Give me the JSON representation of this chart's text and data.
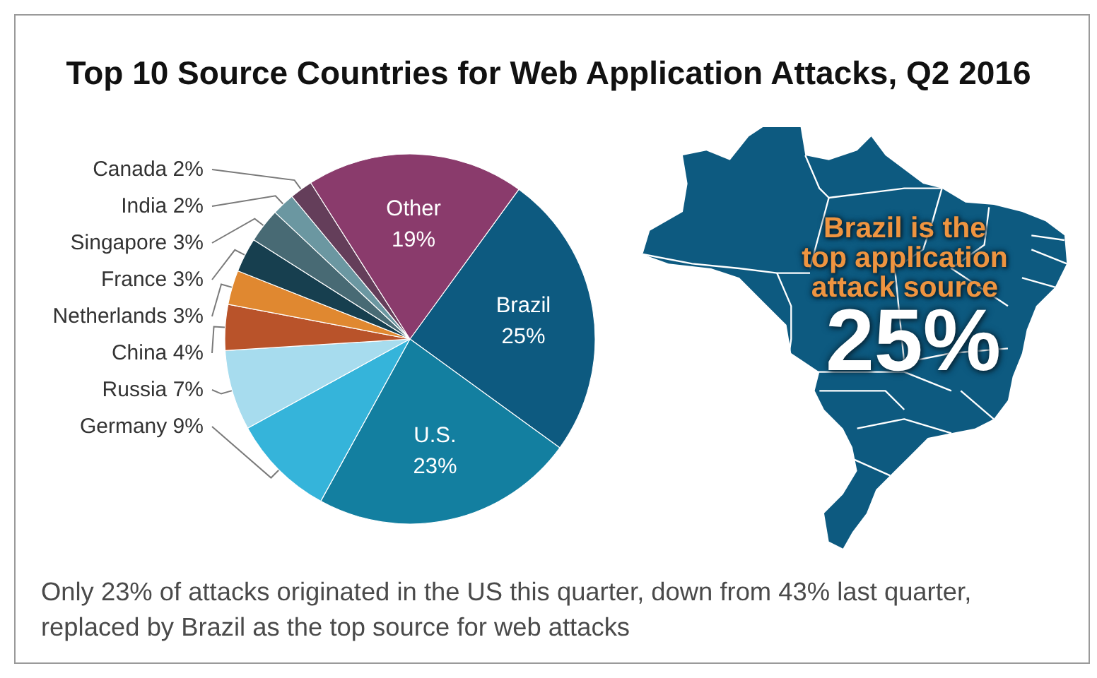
{
  "chart_data": {
    "type": "pie",
    "title": "Top 10 Source Countries for Web Application Attacks, Q2 2016",
    "categories": [
      "Brazil",
      "U.S.",
      "Germany",
      "Russia",
      "China",
      "Netherlands",
      "France",
      "Singapore",
      "India",
      "Canada",
      "Other"
    ],
    "values": [
      25,
      23,
      9,
      7,
      4,
      3,
      3,
      3,
      2,
      2,
      19
    ],
    "value_labels": [
      "25%",
      "23%",
      "9%",
      "7%",
      "4%",
      "3%",
      "3%",
      "3%",
      "2%",
      "2%",
      "19%"
    ],
    "colors": [
      "#0d5a80",
      "#137fa0",
      "#35b4da",
      "#a7dcee",
      "#b9532a",
      "#e08830",
      "#173f4f",
      "#486a74",
      "#6b97a1",
      "#643e5a",
      "#8a3b6c"
    ],
    "annotations": [
      "Brazil is the top application attack source",
      "25%",
      "Only 23% of attacks originated in the US this quarter, down from 43% last quarter, replaced by Brazil as the top source for web attacks"
    ]
  }
}
